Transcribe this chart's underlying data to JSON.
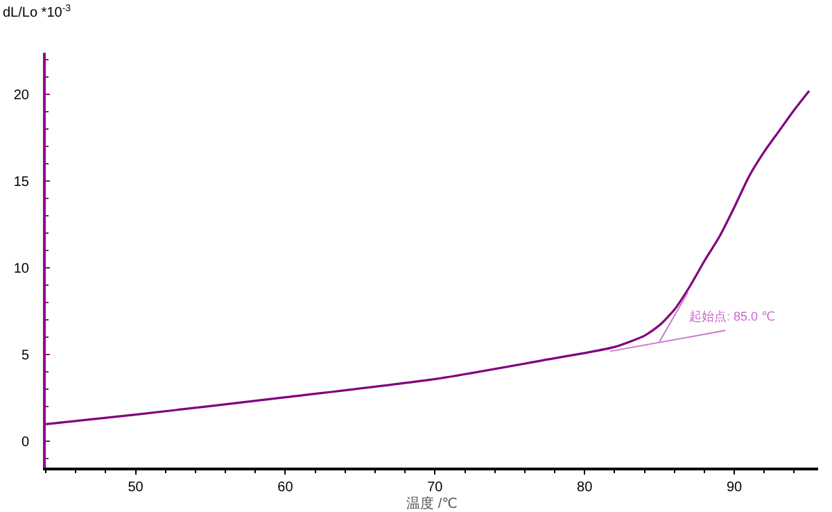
{
  "chart_data": {
    "type": "line",
    "xlabel": "温度 /℃",
    "ylabel": "dL/Lo *10$^{-3}$",
    "x": [
      44,
      50,
      60,
      70,
      78,
      80,
      82,
      84,
      85,
      86,
      87,
      88,
      89,
      90,
      91,
      92,
      93,
      94,
      95
    ],
    "series": [
      {
        "color": "#800080",
        "values": [
          1.0,
          1.55,
          2.55,
          3.6,
          4.8,
          5.1,
          5.45,
          6.1,
          6.7,
          7.6,
          8.9,
          10.4,
          11.8,
          13.5,
          15.3,
          16.7,
          17.9,
          19.1,
          20.2
        ]
      },
      {
        "type": "line",
        "color": "#cc77cc",
        "x": [
          81.7,
          89.4
        ],
        "values": [
          5.2,
          6.4
        ]
      },
      {
        "type": "line",
        "color": "#cc77cc",
        "x": [
          85.0,
          86.9
        ],
        "values": [
          5.75,
          8.6
        ]
      }
    ],
    "annotations": [
      {
        "text": "起始点: 85.0 ℃",
        "x": 85.0,
        "y": 5.75
      }
    ],
    "xlim": [
      44,
      95.6
    ],
    "xticks": [
      50,
      60,
      70,
      80,
      90
    ],
    "ylim": [
      -1.5,
      22.4
    ],
    "yticks": [
      0,
      5,
      10,
      15,
      20
    ],
    "grid": false,
    "marker": "none",
    "line_style": "solid"
  }
}
